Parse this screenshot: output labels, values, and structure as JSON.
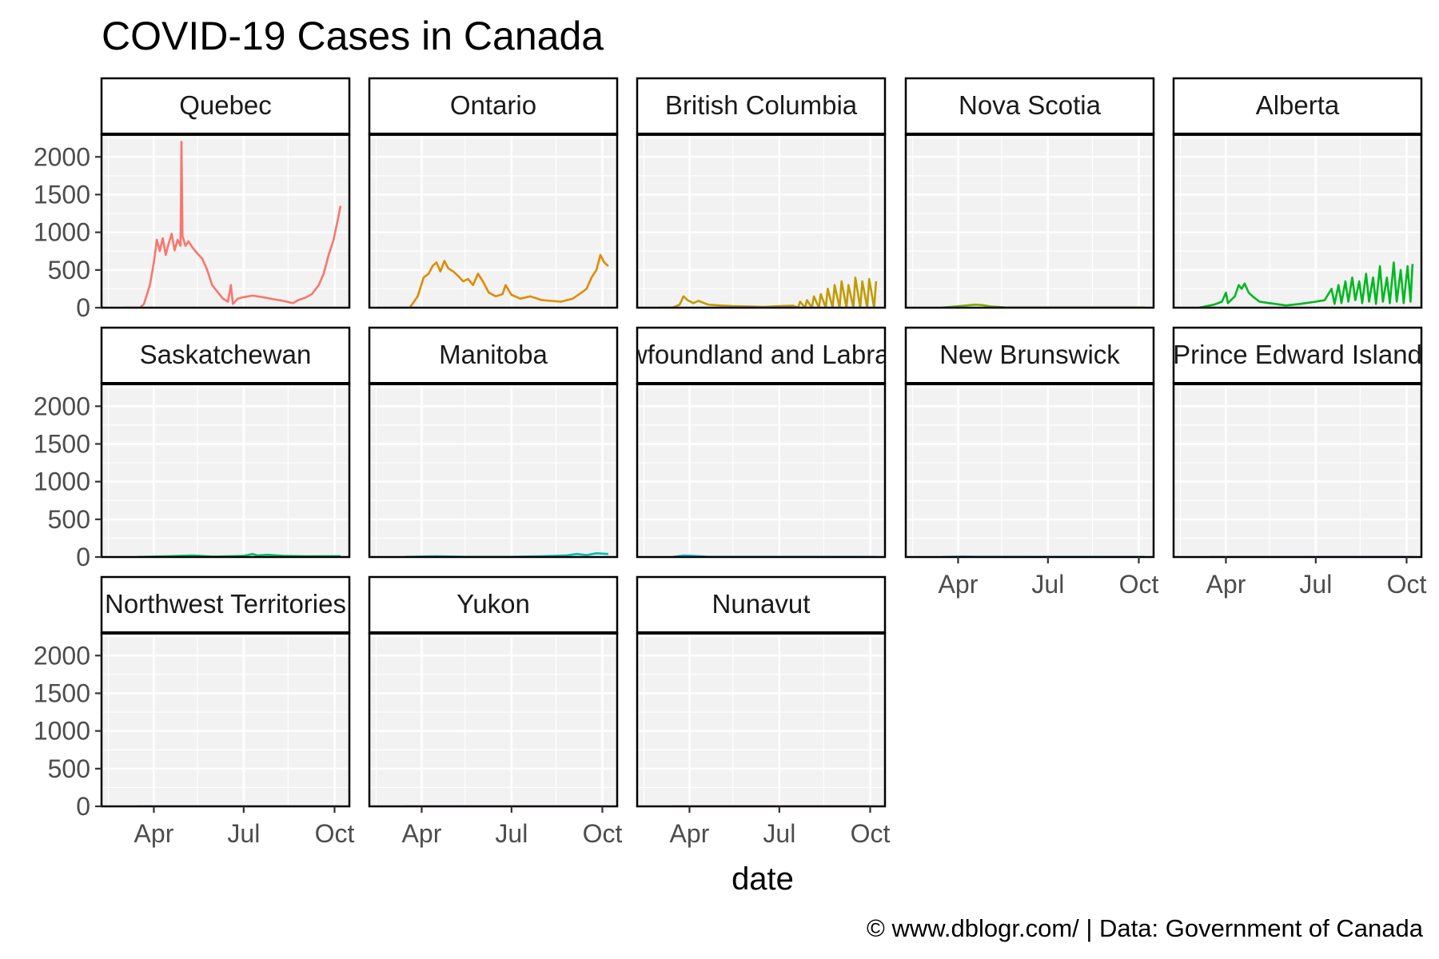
{
  "chart_data": {
    "type": "line",
    "title": "COVID-19 Cases in Canada",
    "xlabel": "date",
    "ylabel": "",
    "caption": "© www.dblogr.com/  |  Data: Government of Canada",
    "x_ticks": [
      "Apr",
      "Jul",
      "Oct"
    ],
    "y_ticks": [
      0,
      500,
      1000,
      1500,
      2000
    ],
    "ylim": [
      0,
      2300
    ],
    "xlim": [
      "2020-02-08",
      "2020-10-16"
    ],
    "facets": "5 columns, 3 rows, shared axes",
    "legend": "none",
    "grid": true,
    "series": [
      {
        "name": "Quebec",
        "color": "#F8766D",
        "x": [
          "2020-03-01",
          "2020-03-18",
          "2020-03-22",
          "2020-03-28",
          "2020-04-01",
          "2020-04-04",
          "2020-04-07",
          "2020-04-10",
          "2020-04-13",
          "2020-04-16",
          "2020-04-19",
          "2020-04-22",
          "2020-04-25",
          "2020-04-28",
          "2020-04-29",
          "2020-04-30",
          "2020-05-03",
          "2020-05-06",
          "2020-05-10",
          "2020-05-15",
          "2020-05-20",
          "2020-05-25",
          "2020-05-30",
          "2020-06-05",
          "2020-06-10",
          "2020-06-15",
          "2020-06-18",
          "2020-06-20",
          "2020-06-25",
          "2020-07-01",
          "2020-07-10",
          "2020-07-20",
          "2020-08-01",
          "2020-08-10",
          "2020-08-20",
          "2020-08-25",
          "2020-09-01",
          "2020-09-08",
          "2020-09-15",
          "2020-09-20",
          "2020-09-25",
          "2020-09-30",
          "2020-10-04",
          "2020-10-07"
        ],
        "values": [
          0,
          0,
          50,
          300,
          600,
          900,
          750,
          920,
          700,
          850,
          980,
          760,
          900,
          820,
          2200,
          950,
          820,
          880,
          800,
          720,
          650,
          500,
          300,
          200,
          120,
          80,
          300,
          50,
          120,
          140,
          160,
          140,
          110,
          90,
          60,
          100,
          130,
          180,
          300,
          450,
          700,
          900,
          1150,
          1350
        ]
      },
      {
        "name": "Ontario",
        "color": "#E08B00",
        "x": [
          "2020-03-01",
          "2020-03-20",
          "2020-03-28",
          "2020-04-03",
          "2020-04-08",
          "2020-04-12",
          "2020-04-16",
          "2020-04-20",
          "2020-04-24",
          "2020-04-28",
          "2020-05-03",
          "2020-05-08",
          "2020-05-13",
          "2020-05-18",
          "2020-05-23",
          "2020-05-28",
          "2020-06-02",
          "2020-06-08",
          "2020-06-15",
          "2020-06-22",
          "2020-06-25",
          "2020-07-01",
          "2020-07-10",
          "2020-07-20",
          "2020-08-01",
          "2020-08-10",
          "2020-08-20",
          "2020-09-01",
          "2020-09-10",
          "2020-09-15",
          "2020-09-20",
          "2020-09-25",
          "2020-09-29",
          "2020-10-03",
          "2020-10-07"
        ],
        "values": [
          0,
          0,
          150,
          400,
          450,
          550,
          600,
          480,
          620,
          520,
          480,
          420,
          350,
          380,
          300,
          450,
          350,
          200,
          150,
          180,
          300,
          170,
          120,
          150,
          100,
          90,
          80,
          120,
          200,
          250,
          400,
          500,
          700,
          600,
          550
        ]
      },
      {
        "name": "British Columbia",
        "color": "#C09B00",
        "x": [
          "2020-03-01",
          "2020-03-15",
          "2020-03-22",
          "2020-03-26",
          "2020-03-30",
          "2020-04-05",
          "2020-04-10",
          "2020-04-20",
          "2020-05-01",
          "2020-05-15",
          "2020-06-01",
          "2020-06-15",
          "2020-07-01",
          "2020-07-15",
          "2020-07-20",
          "2020-07-22",
          "2020-07-27",
          "2020-07-29",
          "2020-08-03",
          "2020-08-05",
          "2020-08-10",
          "2020-08-12",
          "2020-08-17",
          "2020-08-19",
          "2020-08-24",
          "2020-08-26",
          "2020-08-31",
          "2020-09-02",
          "2020-09-07",
          "2020-09-09",
          "2020-09-14",
          "2020-09-16",
          "2020-09-21",
          "2020-09-23",
          "2020-09-28",
          "2020-09-30",
          "2020-10-05",
          "2020-10-07"
        ],
        "values": [
          0,
          0,
          40,
          150,
          100,
          60,
          90,
          40,
          30,
          20,
          15,
          10,
          20,
          25,
          0,
          80,
          0,
          100,
          0,
          150,
          0,
          180,
          0,
          250,
          0,
          300,
          0,
          350,
          0,
          300,
          0,
          400,
          0,
          350,
          0,
          380,
          0,
          350
        ]
      },
      {
        "name": "Nova Scotia",
        "color": "#7CAE00",
        "x": [
          "2020-03-15",
          "2020-04-10",
          "2020-04-18",
          "2020-04-25",
          "2020-05-05",
          "2020-05-20",
          "2020-10-07"
        ],
        "values": [
          0,
          30,
          40,
          35,
          15,
          2,
          2
        ]
      },
      {
        "name": "Alberta",
        "color": "#00B81F",
        "x": [
          "2020-03-05",
          "2020-03-20",
          "2020-03-28",
          "2020-04-01",
          "2020-04-03",
          "2020-04-10",
          "2020-04-14",
          "2020-04-17",
          "2020-04-20",
          "2020-04-24",
          "2020-04-28",
          "2020-05-05",
          "2020-05-15",
          "2020-06-01",
          "2020-06-15",
          "2020-07-01",
          "2020-07-10",
          "2020-07-17",
          "2020-07-20",
          "2020-07-24",
          "2020-07-27",
          "2020-07-31",
          "2020-08-03",
          "2020-08-07",
          "2020-08-10",
          "2020-08-14",
          "2020-08-17",
          "2020-08-21",
          "2020-08-24",
          "2020-08-28",
          "2020-08-31",
          "2020-09-04",
          "2020-09-07",
          "2020-09-11",
          "2020-09-14",
          "2020-09-18",
          "2020-09-21",
          "2020-09-25",
          "2020-09-28",
          "2020-10-02",
          "2020-10-05",
          "2020-10-07"
        ],
        "values": [
          0,
          40,
          80,
          200,
          60,
          150,
          300,
          250,
          320,
          200,
          150,
          80,
          60,
          30,
          50,
          80,
          100,
          250,
          50,
          300,
          60,
          350,
          80,
          400,
          100,
          350,
          60,
          450,
          80,
          400,
          50,
          550,
          80,
          400,
          60,
          600,
          80,
          500,
          60,
          550,
          80,
          580
        ]
      },
      {
        "name": "Saskatchewan",
        "color": "#00BE6D",
        "x": [
          "2020-03-15",
          "2020-04-15",
          "2020-05-10",
          "2020-06-01",
          "2020-07-01",
          "2020-07-10",
          "2020-07-15",
          "2020-07-25",
          "2020-08-10",
          "2020-09-01",
          "2020-10-07"
        ],
        "values": [
          0,
          10,
          20,
          5,
          15,
          40,
          20,
          30,
          15,
          10,
          12
        ]
      },
      {
        "name": "Manitoba",
        "color": "#00BFAD",
        "x": [
          "2020-03-15",
          "2020-04-15",
          "2020-05-15",
          "2020-07-01",
          "2020-08-01",
          "2020-08-25",
          "2020-09-05",
          "2020-09-15",
          "2020-09-25",
          "2020-10-07"
        ],
        "values": [
          0,
          10,
          2,
          2,
          10,
          20,
          40,
          25,
          50,
          40
        ]
      },
      {
        "name": "Newfoundland and Labrador",
        "color": "#00BBDB",
        "x": [
          "2020-03-15",
          "2020-03-25",
          "2020-04-05",
          "2020-04-20",
          "2020-10-07"
        ],
        "values": [
          0,
          20,
          15,
          2,
          1
        ]
      },
      {
        "name": "New Brunswick",
        "color": "#00B1F4",
        "x": [
          "2020-03-15",
          "2020-04-05",
          "2020-04-20",
          "2020-10-07"
        ],
        "values": [
          0,
          5,
          2,
          1
        ]
      },
      {
        "name": "Prince Edward Island",
        "color": "#8B93FF",
        "x": [
          "2020-03-15",
          "2020-10-07"
        ],
        "values": [
          0,
          1
        ]
      },
      {
        "name": "Northwest Territories",
        "color": "#C77CFF",
        "x": [
          "2020-03-15",
          "2020-10-07"
        ],
        "values": [
          0,
          0
        ]
      },
      {
        "name": "Yukon",
        "color": "#F066EA",
        "x": [
          "2020-03-15",
          "2020-10-07"
        ],
        "values": [
          0,
          0
        ]
      },
      {
        "name": "Nunavut",
        "color": "#FF61C3",
        "x": [
          "2020-03-15",
          "2020-10-07"
        ],
        "values": [
          0,
          0
        ]
      }
    ]
  }
}
